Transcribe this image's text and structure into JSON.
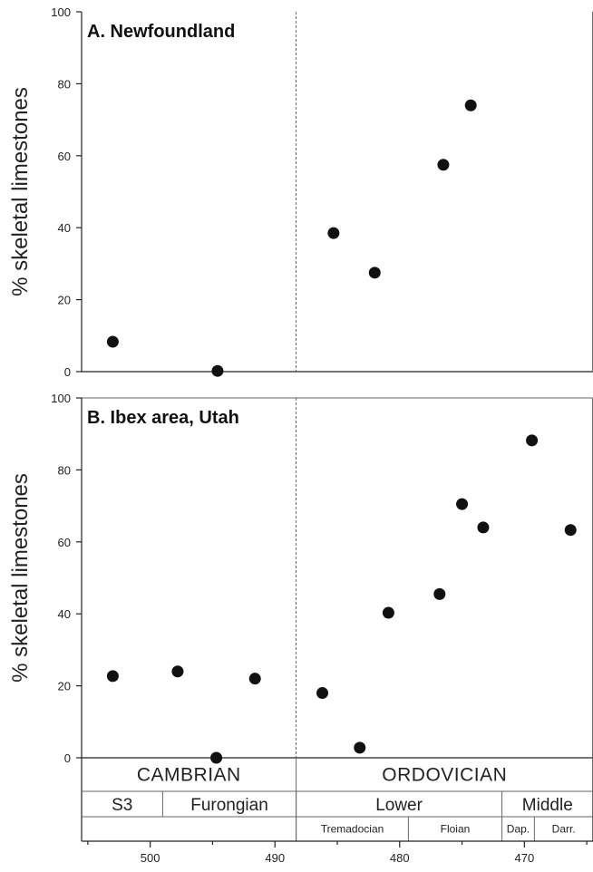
{
  "chart_data": [
    {
      "type": "scatter",
      "title": "A. Newfoundland",
      "ylabel": "% skeletal limestones",
      "xlabel": "",
      "x_reversed": true,
      "xlim": [
        505.5,
        464.5
      ],
      "ylim": [
        0,
        100
      ],
      "yticks": [
        0,
        20,
        40,
        60,
        80,
        100
      ],
      "grid": false,
      "boundary_age": 488.3,
      "points": [
        {
          "x": 503.0,
          "y": 8.3
        },
        {
          "x": 494.6,
          "y": 0.2
        },
        {
          "x": 485.3,
          "y": 38.5
        },
        {
          "x": 482.0,
          "y": 27.5
        },
        {
          "x": 476.5,
          "y": 57.5
        },
        {
          "x": 474.3,
          "y": 74.0
        }
      ]
    },
    {
      "type": "scatter",
      "title": "B. Ibex area, Utah",
      "ylabel": "% skeletal limestones",
      "xlabel": "",
      "x_reversed": true,
      "xlim": [
        505.5,
        464.5
      ],
      "ylim": [
        0,
        100
      ],
      "yticks": [
        0,
        20,
        40,
        60,
        80,
        100
      ],
      "xticks": [
        500,
        490,
        480,
        470
      ],
      "grid": false,
      "boundary_age": 488.3,
      "points": [
        {
          "x": 503.0,
          "y": 22.7
        },
        {
          "x": 497.8,
          "y": 24.0
        },
        {
          "x": 494.7,
          "y": 0.0
        },
        {
          "x": 491.6,
          "y": 22.0
        },
        {
          "x": 486.2,
          "y": 18.0
        },
        {
          "x": 483.2,
          "y": 2.8
        },
        {
          "x": 480.9,
          "y": 40.3
        },
        {
          "x": 476.8,
          "y": 45.5
        },
        {
          "x": 475.0,
          "y": 70.5
        },
        {
          "x": 473.3,
          "y": 64.0
        },
        {
          "x": 469.4,
          "y": 88.2
        },
        {
          "x": 466.3,
          "y": 63.3
        }
      ]
    }
  ],
  "timescale": {
    "eras": [
      {
        "label": "CAMBRIAN",
        "from": 505.5,
        "to": 488.3
      },
      {
        "label": "ORDOVICIAN",
        "from": 488.3,
        "to": 464.5
      }
    ],
    "epochs": [
      {
        "label": "S3",
        "from": 505.5,
        "to": 499.0
      },
      {
        "label": "Furongian",
        "from": 499.0,
        "to": 488.3
      },
      {
        "label": "Lower",
        "from": 488.3,
        "to": 471.8
      },
      {
        "label": "Middle",
        "from": 471.8,
        "to": 464.5
      }
    ],
    "stages": [
      {
        "label": "",
        "from": 505.5,
        "to": 488.3
      },
      {
        "label": "Tremadocian",
        "from": 488.3,
        "to": 479.3
      },
      {
        "label": "Floian",
        "from": 479.3,
        "to": 471.8
      },
      {
        "label": "Dap.",
        "from": 471.8,
        "to": 469.2
      },
      {
        "label": "Darr.",
        "from": 469.2,
        "to": 464.5
      }
    ]
  }
}
